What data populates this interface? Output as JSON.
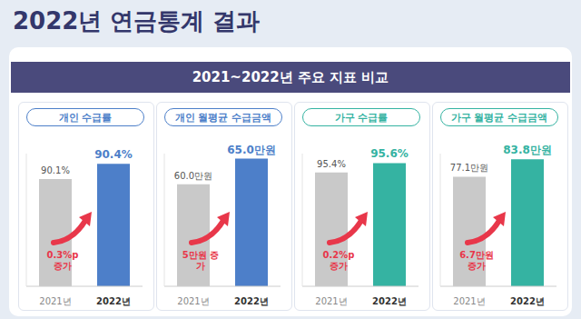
{
  "title": "2022년 연금통계 결과",
  "subtitle": "2021~2022년 주요 지표 비교",
  "chart_data": [
    {
      "type": "bar",
      "title": "개인 수급률",
      "categories": [
        "2021년",
        "2022년"
      ],
      "values": [
        90.1,
        90.4
      ],
      "value_labels": [
        "90.1%",
        "90.4%"
      ],
      "colors": [
        "#c9c9c9",
        "#4d7fc9"
      ],
      "annotation": "0.3%p 증가",
      "ylim": [
        88,
        90.6
      ],
      "tick_labels": "x",
      "data_labels": true
    },
    {
      "type": "bar",
      "title": "개인 월평균 수급금액",
      "categories": [
        "2021년",
        "2022년"
      ],
      "values": [
        60.0,
        65.0
      ],
      "value_labels": [
        "60.0만원",
        "65.0만원"
      ],
      "colors": [
        "#c9c9c9",
        "#4d7fc9"
      ],
      "annotation": "5만원 증가",
      "ylim": [
        40,
        66
      ],
      "tick_labels": "x",
      "data_labels": true
    },
    {
      "type": "bar",
      "title": "가구 수급률",
      "categories": [
        "2021년",
        "2022년"
      ],
      "values": [
        95.4,
        95.6
      ],
      "value_labels": [
        "95.4%",
        "95.6%"
      ],
      "colors": [
        "#c9c9c9",
        "#35b3a2"
      ],
      "annotation": "0.2%p 증가",
      "ylim": [
        93,
        95.8
      ],
      "tick_labels": "x",
      "data_labels": true
    },
    {
      "type": "bar",
      "title": "가구 월평균 수급금액",
      "categories": [
        "2021년",
        "2022년"
      ],
      "values": [
        77.1,
        83.8
      ],
      "value_labels": [
        "77.1만원",
        "83.8만원"
      ],
      "colors": [
        "#c9c9c9",
        "#35b3a2"
      ],
      "annotation": "6.7만원 증가",
      "ylim": [
        35,
        86
      ],
      "tick_labels": "x",
      "data_labels": true
    }
  ]
}
